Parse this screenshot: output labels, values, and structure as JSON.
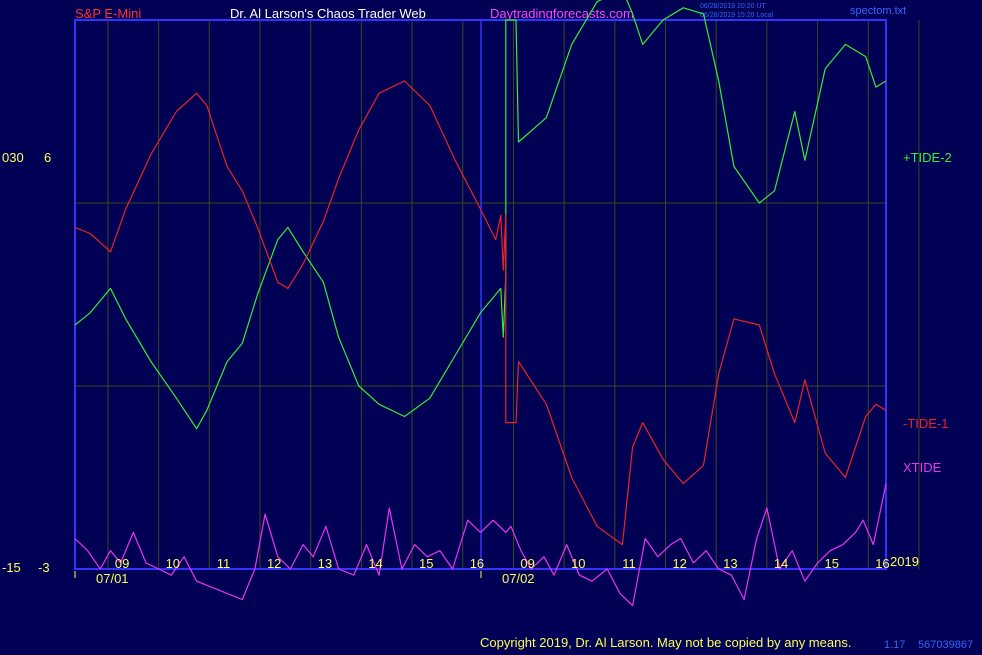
{
  "header": {
    "instrument": "S&P E-Mini",
    "site_title": "Dr. Al Larson's Chaos Trader Web",
    "website": "Daytradingforecasts.com",
    "stamp_utc": "06/28/2019 20:20 UT",
    "stamp_local": "06/28/2019 15:20 Local",
    "filename": "spectom.txt"
  },
  "footer": {
    "copyright": "Copyright 2019, Dr. Al Larson. May not be copied by any means.",
    "code_a": "1.17",
    "code_b": "567039867"
  },
  "colors": {
    "background": "#000055",
    "frame": "#3333ff",
    "grid": "#3a4a1a",
    "tide_plus": "#33ee33",
    "tide_minus": "#ee2222",
    "xtide": "#ee33ee",
    "text_red": "#ff3333",
    "text_yellow": "#ffff55",
    "text_magenta": "#ff44ff",
    "text_blue": "#3366ff"
  },
  "chart_data": {
    "type": "line",
    "title": "",
    "left_axis": {
      "labels": [
        "030",
        "-15"
      ]
    },
    "right_axis": {
      "labels": [
        "6",
        "-3"
      ]
    },
    "year_label": "2019",
    "hours": [
      "09",
      "10",
      "11",
      "12",
      "13",
      "14",
      "15",
      "16",
      "09",
      "10",
      "11",
      "12",
      "13",
      "14",
      "15",
      "16"
    ],
    "dates": [
      "07/01",
      "07/02"
    ],
    "x_domain": [
      0,
      16
    ],
    "y_domain": [
      -3,
      6
    ],
    "series": [
      {
        "name": "+TIDE-2",
        "color_key": "tide_plus",
        "values": [
          [
            0,
            1.0
          ],
          [
            0.3,
            1.2
          ],
          [
            0.7,
            1.6
          ],
          [
            1.0,
            1.1
          ],
          [
            1.5,
            0.4
          ],
          [
            2.0,
            -0.2
          ],
          [
            2.4,
            -0.7
          ],
          [
            2.6,
            -0.4
          ],
          [
            3.0,
            0.4
          ],
          [
            3.3,
            0.7
          ],
          [
            3.6,
            1.5
          ],
          [
            4.0,
            2.4
          ],
          [
            4.2,
            2.6
          ],
          [
            4.5,
            2.2
          ],
          [
            4.9,
            1.7
          ],
          [
            5.2,
            0.8
          ],
          [
            5.6,
            0.0
          ],
          [
            6.0,
            -0.3
          ],
          [
            6.5,
            -0.5
          ],
          [
            7.0,
            -0.2
          ],
          [
            7.5,
            0.5
          ],
          [
            8.0,
            1.2
          ],
          [
            8.3,
            1.5
          ],
          [
            8.4,
            1.6
          ],
          [
            8.45,
            0.8
          ],
          [
            8.5,
            1.8
          ],
          [
            8.5,
            6.0
          ],
          [
            8.7,
            6.0
          ],
          [
            8.75,
            4.0
          ],
          [
            9.3,
            4.4
          ],
          [
            9.8,
            5.6
          ],
          [
            10.3,
            6.3
          ],
          [
            10.8,
            6.5
          ],
          [
            11.0,
            6.1
          ],
          [
            11.2,
            5.6
          ],
          [
            11.6,
            6.0
          ],
          [
            12.0,
            6.2
          ],
          [
            12.4,
            6.1
          ],
          [
            12.7,
            5.0
          ],
          [
            13.0,
            3.6
          ],
          [
            13.5,
            3.0
          ],
          [
            13.8,
            3.2
          ],
          [
            14.2,
            4.5
          ],
          [
            14.4,
            3.7
          ],
          [
            14.8,
            5.2
          ],
          [
            15.2,
            5.6
          ],
          [
            15.6,
            5.4
          ],
          [
            15.8,
            4.9
          ],
          [
            16.0,
            5.0
          ]
        ]
      },
      {
        "name": "-TIDE-1",
        "color_key": "tide_minus",
        "values": [
          [
            0,
            2.6
          ],
          [
            0.3,
            2.5
          ],
          [
            0.7,
            2.2
          ],
          [
            1.0,
            2.9
          ],
          [
            1.5,
            3.8
          ],
          [
            2.0,
            4.5
          ],
          [
            2.4,
            4.8
          ],
          [
            2.6,
            4.6
          ],
          [
            3.0,
            3.6
          ],
          [
            3.3,
            3.2
          ],
          [
            3.6,
            2.6
          ],
          [
            4.0,
            1.7
          ],
          [
            4.2,
            1.6
          ],
          [
            4.5,
            2.0
          ],
          [
            4.9,
            2.7
          ],
          [
            5.2,
            3.4
          ],
          [
            5.6,
            4.2
          ],
          [
            6.0,
            4.8
          ],
          [
            6.5,
            5.0
          ],
          [
            7.0,
            4.6
          ],
          [
            7.5,
            3.7
          ],
          [
            8.0,
            2.9
          ],
          [
            8.3,
            2.4
          ],
          [
            8.4,
            2.8
          ],
          [
            8.45,
            1.9
          ],
          [
            8.5,
            2.8
          ],
          [
            8.5,
            -0.6
          ],
          [
            8.7,
            -0.6
          ],
          [
            8.75,
            0.4
          ],
          [
            9.3,
            -0.3
          ],
          [
            9.8,
            -1.5
          ],
          [
            10.3,
            -2.3
          ],
          [
            10.8,
            -2.6
          ],
          [
            11.0,
            -1.0
          ],
          [
            11.2,
            -0.6
          ],
          [
            11.6,
            -1.2
          ],
          [
            12.0,
            -1.6
          ],
          [
            12.4,
            -1.3
          ],
          [
            12.7,
            0.2
          ],
          [
            13.0,
            1.1
          ],
          [
            13.5,
            1.0
          ],
          [
            13.8,
            0.2
          ],
          [
            14.2,
            -0.6
          ],
          [
            14.4,
            0.1
          ],
          [
            14.8,
            -1.1
          ],
          [
            15.2,
            -1.5
          ],
          [
            15.6,
            -0.5
          ],
          [
            15.8,
            -0.3
          ],
          [
            16.0,
            -0.4
          ]
        ]
      },
      {
        "name": "XTIDE",
        "color_key": "xtide",
        "values": [
          [
            0,
            -2.5
          ],
          [
            0.25,
            -2.7
          ],
          [
            0.5,
            -3.0
          ],
          [
            0.7,
            -2.7
          ],
          [
            0.9,
            -2.9
          ],
          [
            1.15,
            -2.4
          ],
          [
            1.4,
            -2.9
          ],
          [
            1.65,
            -3.0
          ],
          [
            1.9,
            -3.1
          ],
          [
            2.15,
            -2.8
          ],
          [
            2.4,
            -3.2
          ],
          [
            2.7,
            -3.3
          ],
          [
            3.0,
            -3.4
          ],
          [
            3.3,
            -3.5
          ],
          [
            3.55,
            -3.0
          ],
          [
            3.75,
            -2.1
          ],
          [
            4.0,
            -2.8
          ],
          [
            4.25,
            -3.0
          ],
          [
            4.5,
            -2.6
          ],
          [
            4.7,
            -2.8
          ],
          [
            4.95,
            -2.3
          ],
          [
            5.2,
            -3.0
          ],
          [
            5.5,
            -3.1
          ],
          [
            5.75,
            -2.6
          ],
          [
            6.0,
            -3.1
          ],
          [
            6.2,
            -2.0
          ],
          [
            6.45,
            -3.0
          ],
          [
            6.7,
            -2.6
          ],
          [
            6.95,
            -2.8
          ],
          [
            7.2,
            -2.7
          ],
          [
            7.45,
            -3.0
          ],
          [
            7.75,
            -2.2
          ],
          [
            8.0,
            -2.4
          ],
          [
            8.25,
            -2.2
          ],
          [
            8.5,
            -2.4
          ],
          [
            8.6,
            -2.3
          ],
          [
            8.8,
            -2.7
          ],
          [
            9.0,
            -3.0
          ],
          [
            9.25,
            -2.8
          ],
          [
            9.45,
            -3.1
          ],
          [
            9.7,
            -2.6
          ],
          [
            9.95,
            -3.1
          ],
          [
            10.2,
            -3.2
          ],
          [
            10.5,
            -3.0
          ],
          [
            10.75,
            -3.4
          ],
          [
            11.0,
            -3.6
          ],
          [
            11.25,
            -2.5
          ],
          [
            11.5,
            -2.8
          ],
          [
            11.75,
            -2.6
          ],
          [
            11.95,
            -2.5
          ],
          [
            12.2,
            -2.9
          ],
          [
            12.45,
            -2.7
          ],
          [
            12.7,
            -3.0
          ],
          [
            12.95,
            -3.1
          ],
          [
            13.2,
            -3.5
          ],
          [
            13.45,
            -2.5
          ],
          [
            13.65,
            -2.0
          ],
          [
            13.9,
            -3.0
          ],
          [
            14.15,
            -2.7
          ],
          [
            14.4,
            -3.2
          ],
          [
            14.65,
            -2.9
          ],
          [
            14.9,
            -2.7
          ],
          [
            15.15,
            -2.6
          ],
          [
            15.4,
            -2.4
          ],
          [
            15.55,
            -2.2
          ],
          [
            15.75,
            -2.6
          ],
          [
            15.95,
            -1.8
          ],
          [
            16.0,
            -1.6
          ]
        ]
      }
    ]
  }
}
